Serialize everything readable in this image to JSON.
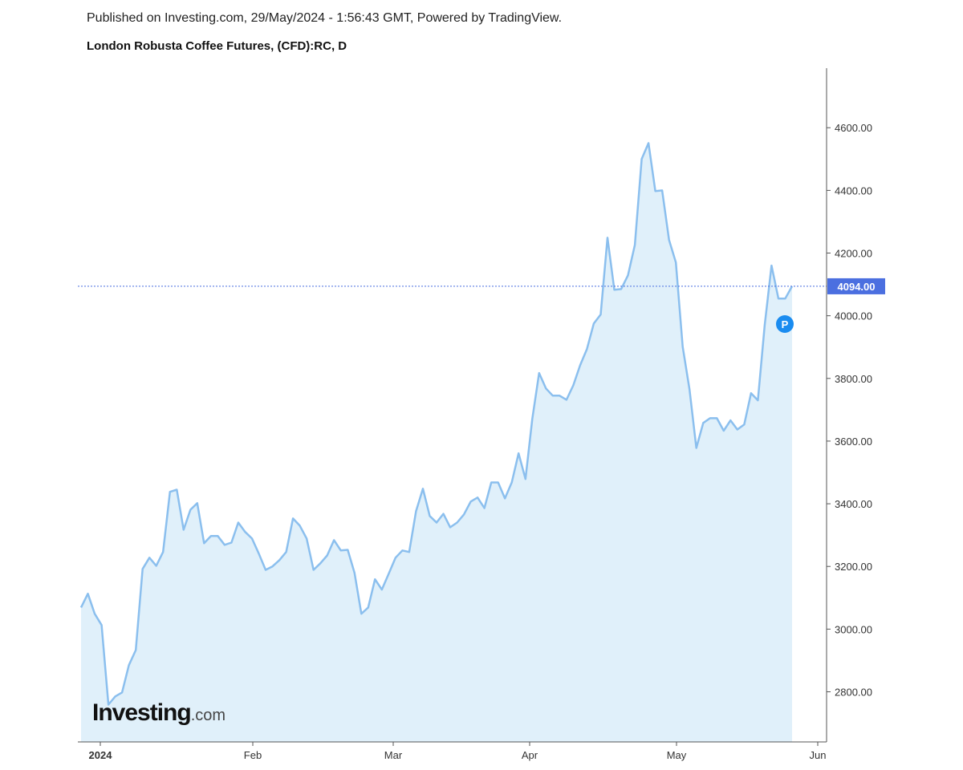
{
  "header": {
    "published": "Published on Investing.com, 29/May/2024 - 1:56:43 GMT, Powered by TradingView.",
    "title": "London Robusta Coffee Futures, (CFD):RC, D"
  },
  "logo": {
    "name": "Investing",
    "suffix": ".com"
  },
  "chart_data": {
    "type": "area",
    "title": "London Robusta Coffee Futures, (CFD):RC, D",
    "xlabel": "",
    "ylabel": "",
    "x_tick_labels": [
      "2024",
      "Feb",
      "Mar",
      "Apr",
      "May",
      "Jun"
    ],
    "y_ticks": [
      2800,
      3000,
      3200,
      3400,
      3600,
      3800,
      4000,
      4200,
      4400,
      4600
    ],
    "y_tick_labels": [
      "2800.00",
      "3000.00",
      "3200.00",
      "3400.00",
      "3600.00",
      "3800.00",
      "4000.00",
      "4200.00",
      "4400.00",
      "4600.00"
    ],
    "ylim": [
      2640,
      4790
    ],
    "grid": false,
    "line_color": "#8bbfee",
    "fill_color": "#e0f0fa",
    "current_price": 4094,
    "current_price_label": "4094.00",
    "current_price_color": "#4b6fe0",
    "marker_label": "P",
    "marker_color": "#1a8cf0",
    "values": [
      3069,
      3113,
      3049,
      3013,
      2759,
      2785,
      2798,
      2885,
      2933,
      3192,
      3228,
      3202,
      3246,
      3438,
      3445,
      3317,
      3381,
      3402,
      3274,
      3297,
      3297,
      3269,
      3276,
      3340,
      3310,
      3289,
      3241,
      3189,
      3200,
      3220,
      3246,
      3353,
      3330,
      3289,
      3189,
      3210,
      3235,
      3284,
      3251,
      3253,
      3179,
      3049,
      3069,
      3159,
      3126,
      3177,
      3228,
      3251,
      3246,
      3376,
      3448,
      3361,
      3340,
      3368,
      3325,
      3340,
      3366,
      3407,
      3420,
      3386,
      3468,
      3468,
      3417,
      3468,
      3561,
      3479,
      3671,
      3817,
      3768,
      3745,
      3745,
      3732,
      3778,
      3842,
      3894,
      3975,
      4004,
      4249,
      4083,
      4085,
      4129,
      4226,
      4500,
      4551,
      4398,
      4400,
      4242,
      4170,
      3901,
      3765,
      3578,
      3658,
      3673,
      3673,
      3633,
      3666,
      3637,
      3653,
      3753,
      3730,
      3970,
      4160,
      4055,
      4055,
      4094
    ]
  }
}
